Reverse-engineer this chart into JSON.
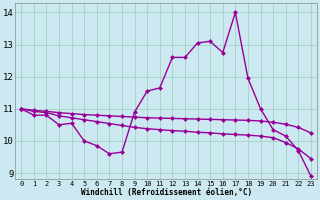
{
  "xlabel": "Windchill (Refroidissement éolien,°C)",
  "bg_color": "#cce8f0",
  "grid_color": "#aad4cc",
  "line_color": "#990099",
  "xlim": [
    -0.5,
    23.5
  ],
  "ylim": [
    8.8,
    14.3
  ],
  "yticks": [
    9,
    10,
    11,
    12,
    13,
    14
  ],
  "xticks": [
    0,
    1,
    2,
    3,
    4,
    5,
    6,
    7,
    8,
    9,
    10,
    11,
    12,
    13,
    14,
    15,
    16,
    17,
    18,
    19,
    20,
    21,
    22,
    23
  ],
  "line1_x": [
    0,
    1,
    2,
    3,
    4,
    5,
    6,
    7,
    8,
    9,
    10,
    11,
    12,
    13,
    14,
    15,
    16,
    17,
    18,
    19,
    20,
    21,
    22,
    23
  ],
  "line1_y": [
    11.0,
    10.8,
    10.8,
    10.5,
    10.55,
    10.0,
    9.85,
    9.6,
    9.65,
    10.9,
    11.55,
    11.65,
    12.6,
    12.6,
    13.05,
    13.1,
    12.75,
    14.0,
    11.95,
    11.0,
    10.35,
    10.15,
    9.7,
    8.9
  ],
  "line2_x": [
    0,
    1,
    2,
    3,
    4,
    5,
    6,
    7,
    8,
    9,
    10,
    11,
    12,
    13,
    14,
    15,
    16,
    17,
    18,
    19,
    20,
    21,
    22,
    23
  ],
  "line2_y": [
    11.0,
    10.92,
    10.88,
    10.78,
    10.72,
    10.66,
    10.6,
    10.54,
    10.48,
    10.42,
    10.38,
    10.35,
    10.32,
    10.3,
    10.27,
    10.25,
    10.22,
    10.2,
    10.18,
    10.15,
    10.1,
    9.95,
    9.75,
    9.45
  ],
  "line3_x": [
    0,
    1,
    2,
    3,
    4,
    5,
    6,
    7,
    8,
    9,
    10,
    11,
    12,
    13,
    14,
    15,
    16,
    17,
    18,
    19,
    20,
    21,
    22,
    23
  ],
  "line3_y": [
    11.0,
    10.95,
    10.92,
    10.88,
    10.85,
    10.82,
    10.8,
    10.78,
    10.76,
    10.74,
    10.72,
    10.71,
    10.7,
    10.69,
    10.68,
    10.67,
    10.66,
    10.65,
    10.64,
    10.62,
    10.58,
    10.52,
    10.42,
    10.25
  ],
  "marker": "D",
  "markersize": 2.5,
  "linewidth": 1.0
}
